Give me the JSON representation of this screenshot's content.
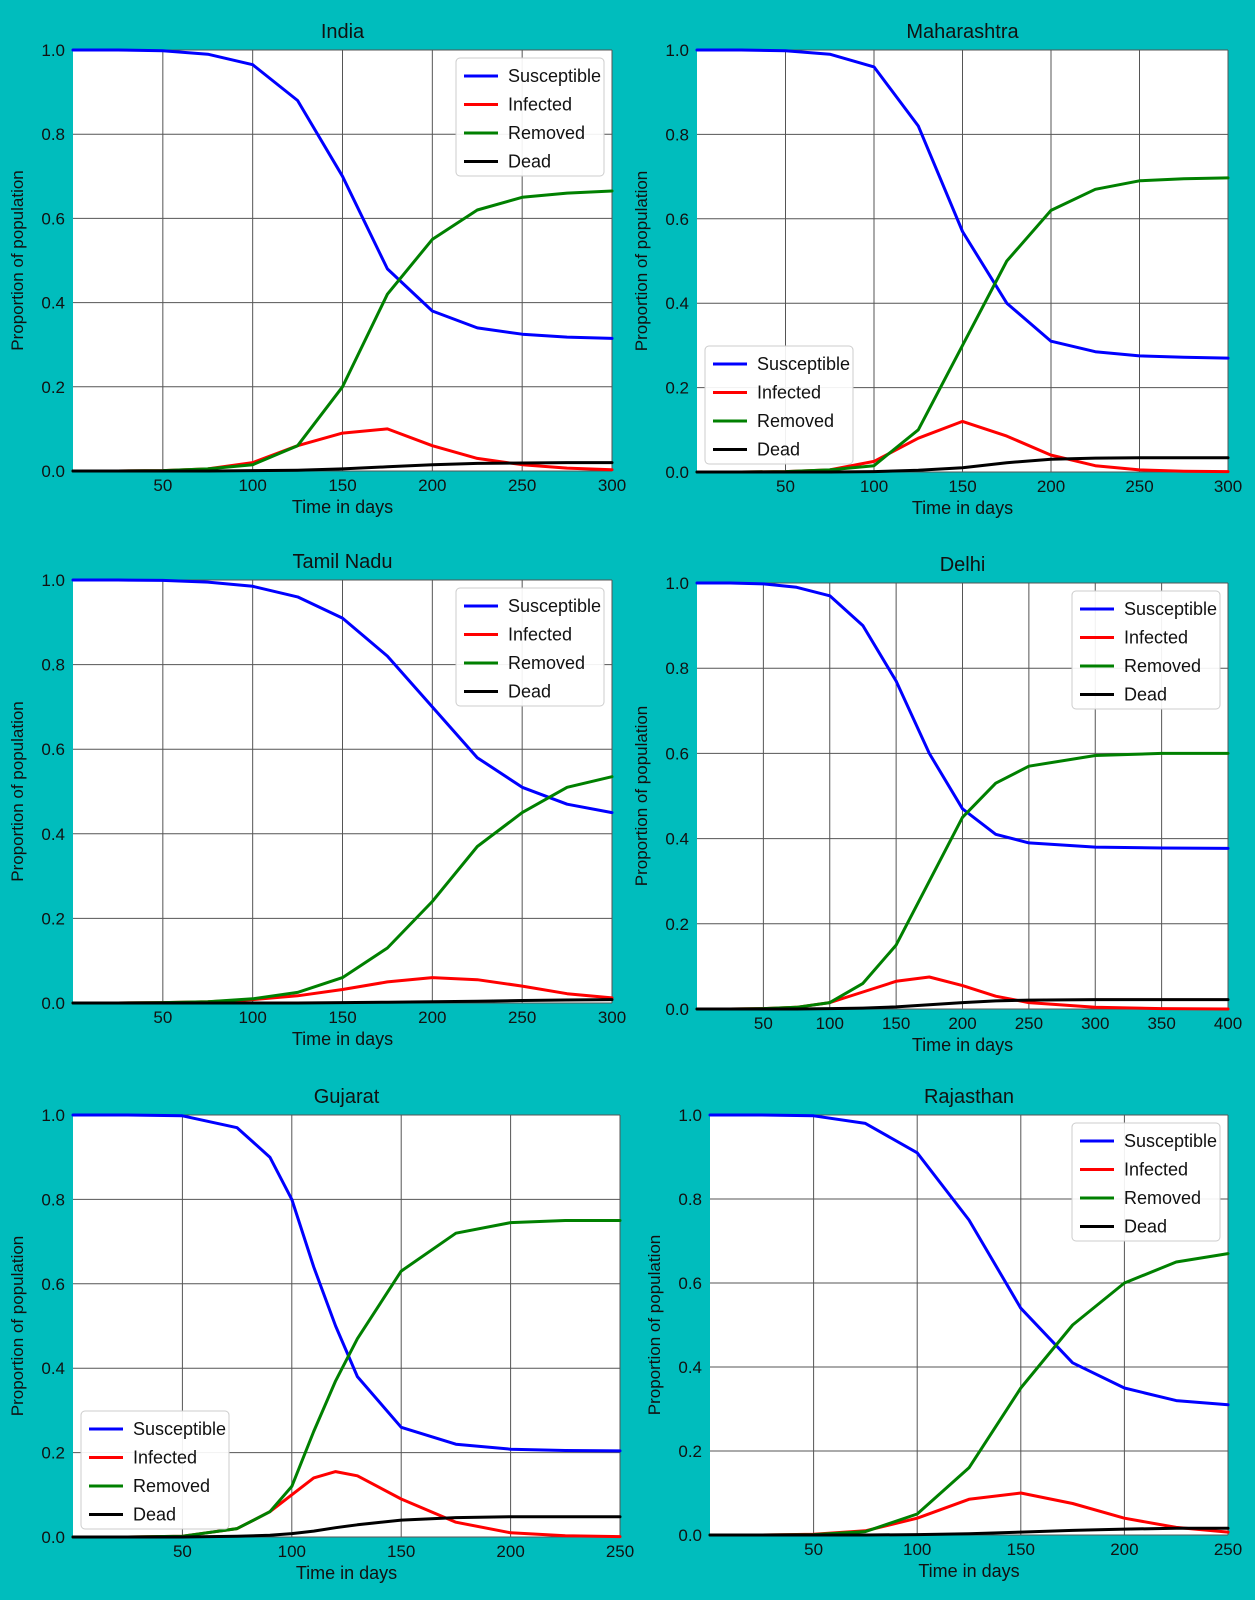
{
  "figure": {
    "background_color": "#00BDBD",
    "plot_background": "#FFFFFF",
    "grid_color": "#555555",
    "series_colors": {
      "Susceptible": "#0000FF",
      "Infected": "#FF0000",
      "Removed": "#008000",
      "Dead": "#000000"
    }
  },
  "chart_data": [
    {
      "type": "line",
      "title": "India",
      "xlabel": "Time in days",
      "ylabel": "Proportion of population",
      "xlim": [
        0,
        300
      ],
      "ylim": [
        0,
        1
      ],
      "xticks": [
        50,
        100,
        150,
        200,
        250,
        300
      ],
      "yticks": [
        0.0,
        0.2,
        0.4,
        0.6,
        0.8,
        1.0
      ],
      "grid": true,
      "legend": "top-right",
      "x": [
        0,
        25,
        50,
        75,
        100,
        125,
        150,
        175,
        200,
        225,
        250,
        275,
        300
      ],
      "series": [
        {
          "name": "Susceptible",
          "values": [
            1.0,
            1.0,
            0.998,
            0.99,
            0.965,
            0.88,
            0.7,
            0.48,
            0.38,
            0.34,
            0.325,
            0.318,
            0.315
          ]
        },
        {
          "name": "Infected",
          "values": [
            0.0,
            0.0,
            0.001,
            0.005,
            0.02,
            0.06,
            0.09,
            0.1,
            0.06,
            0.03,
            0.015,
            0.007,
            0.003
          ]
        },
        {
          "name": "Removed",
          "values": [
            0.0,
            0.0,
            0.001,
            0.005,
            0.015,
            0.06,
            0.2,
            0.42,
            0.55,
            0.62,
            0.65,
            0.66,
            0.665
          ]
        },
        {
          "name": "Dead",
          "values": [
            0.0,
            0.0,
            0.0,
            0.0,
            0.001,
            0.002,
            0.005,
            0.01,
            0.015,
            0.018,
            0.019,
            0.02,
            0.02
          ]
        }
      ]
    },
    {
      "type": "line",
      "title": "Maharashtra",
      "xlabel": "Time in days",
      "ylabel": "Proportion of population",
      "xlim": [
        0,
        300
      ],
      "ylim": [
        0,
        1
      ],
      "xticks": [
        50,
        100,
        150,
        200,
        250,
        300
      ],
      "yticks": [
        0.0,
        0.2,
        0.4,
        0.6,
        0.8,
        1.0
      ],
      "grid": true,
      "legend": "lower-left",
      "x": [
        0,
        25,
        50,
        75,
        100,
        125,
        150,
        175,
        200,
        225,
        250,
        275,
        300
      ],
      "series": [
        {
          "name": "Susceptible",
          "values": [
            1.0,
            1.0,
            0.998,
            0.99,
            0.96,
            0.82,
            0.57,
            0.4,
            0.31,
            0.285,
            0.275,
            0.272,
            0.27
          ]
        },
        {
          "name": "Infected",
          "values": [
            0.0,
            0.0,
            0.001,
            0.005,
            0.025,
            0.08,
            0.12,
            0.085,
            0.04,
            0.015,
            0.005,
            0.002,
            0.001
          ]
        },
        {
          "name": "Removed",
          "values": [
            0.0,
            0.0,
            0.001,
            0.005,
            0.015,
            0.1,
            0.3,
            0.5,
            0.62,
            0.67,
            0.69,
            0.695,
            0.697
          ]
        },
        {
          "name": "Dead",
          "values": [
            0.0,
            0.0,
            0.0,
            0.0,
            0.001,
            0.004,
            0.01,
            0.022,
            0.03,
            0.033,
            0.034,
            0.034,
            0.034
          ]
        }
      ]
    },
    {
      "type": "line",
      "title": "Tamil Nadu",
      "xlabel": "Time in days",
      "ylabel": "Proportion of population",
      "xlim": [
        0,
        300
      ],
      "ylim": [
        0,
        1
      ],
      "xticks": [
        50,
        100,
        150,
        200,
        250,
        300
      ],
      "yticks": [
        0.0,
        0.2,
        0.4,
        0.6,
        0.8,
        1.0
      ],
      "grid": true,
      "legend": "top-right",
      "x": [
        0,
        25,
        50,
        75,
        100,
        125,
        150,
        175,
        200,
        225,
        250,
        275,
        300
      ],
      "series": [
        {
          "name": "Susceptible",
          "values": [
            1.0,
            1.0,
            0.999,
            0.995,
            0.985,
            0.96,
            0.91,
            0.82,
            0.7,
            0.58,
            0.51,
            0.47,
            0.45
          ]
        },
        {
          "name": "Infected",
          "values": [
            0.0,
            0.0,
            0.001,
            0.003,
            0.008,
            0.017,
            0.032,
            0.05,
            0.06,
            0.055,
            0.04,
            0.022,
            0.012
          ]
        },
        {
          "name": "Removed",
          "values": [
            0.0,
            0.0,
            0.001,
            0.003,
            0.01,
            0.025,
            0.06,
            0.13,
            0.24,
            0.37,
            0.45,
            0.51,
            0.535
          ]
        },
        {
          "name": "Dead",
          "values": [
            0.0,
            0.0,
            0.0,
            0.0,
            0.0,
            0.0,
            0.001,
            0.002,
            0.003,
            0.004,
            0.006,
            0.007,
            0.008
          ]
        }
      ]
    },
    {
      "type": "line",
      "title": "Delhi",
      "xlabel": "Time in days",
      "ylabel": "Proportion of population",
      "xlim": [
        0,
        400
      ],
      "ylim": [
        0,
        1
      ],
      "xticks": [
        50,
        100,
        150,
        200,
        250,
        300,
        350,
        400
      ],
      "yticks": [
        0.0,
        0.2,
        0.4,
        0.6,
        0.8,
        1.0
      ],
      "grid": true,
      "legend": "top-right",
      "x": [
        0,
        25,
        50,
        75,
        100,
        125,
        150,
        175,
        200,
        225,
        250,
        300,
        350,
        400
      ],
      "series": [
        {
          "name": "Susceptible",
          "values": [
            1.0,
            1.0,
            0.998,
            0.99,
            0.97,
            0.9,
            0.77,
            0.6,
            0.47,
            0.41,
            0.39,
            0.38,
            0.378,
            0.377
          ]
        },
        {
          "name": "Infected",
          "values": [
            0.0,
            0.0,
            0.001,
            0.004,
            0.015,
            0.04,
            0.065,
            0.075,
            0.055,
            0.03,
            0.015,
            0.004,
            0.001,
            0.0
          ]
        },
        {
          "name": "Removed",
          "values": [
            0.0,
            0.0,
            0.001,
            0.004,
            0.015,
            0.06,
            0.15,
            0.3,
            0.45,
            0.53,
            0.57,
            0.595,
            0.6,
            0.6
          ]
        },
        {
          "name": "Dead",
          "values": [
            0.0,
            0.0,
            0.0,
            0.0,
            0.001,
            0.002,
            0.005,
            0.01,
            0.015,
            0.019,
            0.021,
            0.022,
            0.022,
            0.022
          ]
        }
      ]
    },
    {
      "type": "line",
      "title": "Gujarat",
      "xlabel": "Time in days",
      "ylabel": "Proportion of population",
      "xlim": [
        0,
        250
      ],
      "ylim": [
        0,
        1
      ],
      "xticks": [
        50,
        100,
        150,
        200,
        250
      ],
      "yticks": [
        0.0,
        0.2,
        0.4,
        0.6,
        0.8,
        1.0
      ],
      "grid": true,
      "legend": "lower-left",
      "x": [
        0,
        25,
        50,
        75,
        90,
        100,
        110,
        120,
        130,
        150,
        175,
        200,
        225,
        250
      ],
      "series": [
        {
          "name": "Susceptible",
          "values": [
            1.0,
            1.0,
            0.998,
            0.97,
            0.9,
            0.8,
            0.64,
            0.5,
            0.38,
            0.26,
            0.22,
            0.208,
            0.205,
            0.204
          ]
        },
        {
          "name": "Infected",
          "values": [
            0.0,
            0.0,
            0.002,
            0.02,
            0.06,
            0.1,
            0.14,
            0.155,
            0.145,
            0.09,
            0.035,
            0.01,
            0.003,
            0.001
          ]
        },
        {
          "name": "Removed",
          "values": [
            0.0,
            0.0,
            0.002,
            0.02,
            0.06,
            0.12,
            0.25,
            0.37,
            0.47,
            0.63,
            0.72,
            0.745,
            0.75,
            0.75
          ]
        },
        {
          "name": "Dead",
          "values": [
            0.0,
            0.0,
            0.0,
            0.002,
            0.004,
            0.008,
            0.014,
            0.022,
            0.029,
            0.04,
            0.046,
            0.048,
            0.048,
            0.048
          ]
        }
      ]
    },
    {
      "type": "line",
      "title": "Rajasthan",
      "xlabel": "Time in days",
      "ylabel": "Proportion of population",
      "xlim": [
        0,
        250
      ],
      "ylim": [
        0,
        1
      ],
      "xticks": [
        50,
        100,
        150,
        200,
        250
      ],
      "yticks": [
        0.0,
        0.2,
        0.4,
        0.6,
        0.8,
        1.0
      ],
      "grid": true,
      "legend": "top-right",
      "x": [
        0,
        25,
        50,
        75,
        100,
        125,
        150,
        175,
        200,
        225,
        250
      ],
      "series": [
        {
          "name": "Susceptible",
          "values": [
            1.0,
            1.0,
            0.998,
            0.98,
            0.91,
            0.75,
            0.54,
            0.41,
            0.35,
            0.32,
            0.31
          ]
        },
        {
          "name": "Infected",
          "values": [
            0.0,
            0.0,
            0.002,
            0.01,
            0.04,
            0.085,
            0.1,
            0.075,
            0.04,
            0.018,
            0.007
          ]
        },
        {
          "name": "Removed",
          "values": [
            0.0,
            0.0,
            0.001,
            0.008,
            0.05,
            0.16,
            0.35,
            0.5,
            0.6,
            0.65,
            0.67
          ]
        },
        {
          "name": "Dead",
          "values": [
            0.0,
            0.0,
            0.0,
            0.0,
            0.001,
            0.003,
            0.007,
            0.011,
            0.014,
            0.016,
            0.016
          ]
        }
      ]
    }
  ]
}
